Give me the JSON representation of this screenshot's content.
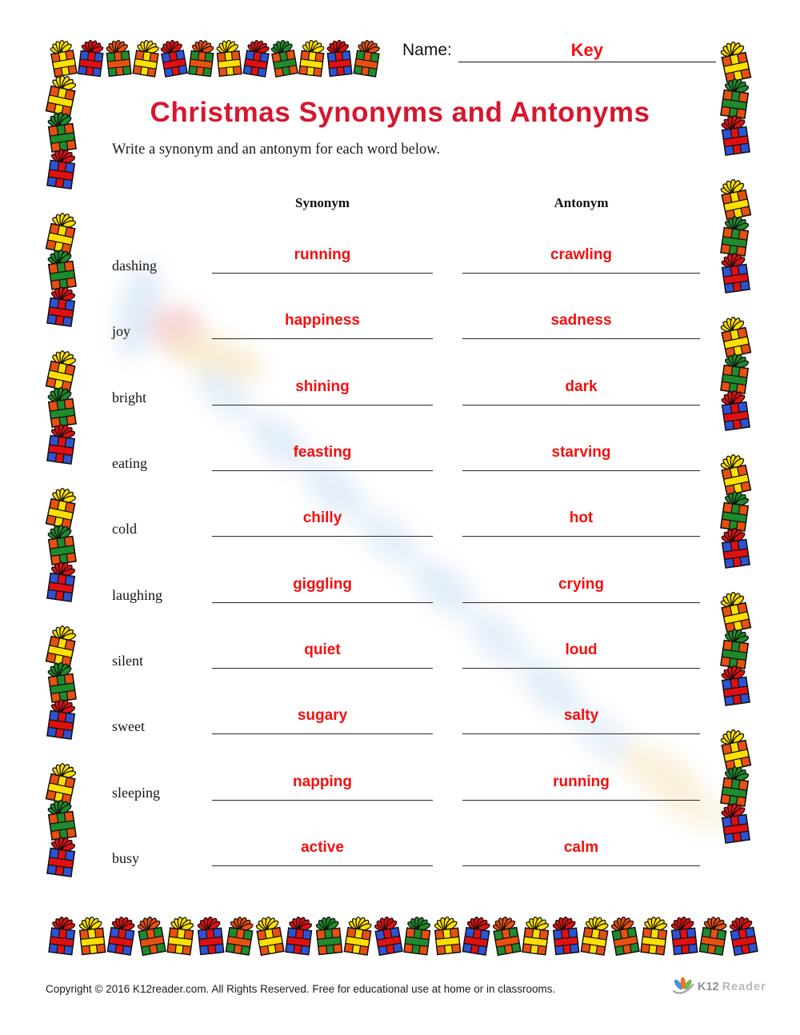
{
  "page": {
    "name_label": "Name:",
    "name_value": "Key",
    "title": "Christmas Synonyms and Antonyms",
    "instructions": "Write a synonym and an antonym for each word below.",
    "column_headers": {
      "synonym": "Synonym",
      "antonym": "Antonym"
    }
  },
  "rows": [
    {
      "word": "dashing",
      "synonym": "running",
      "antonym": "crawling"
    },
    {
      "word": "joy",
      "synonym": "happiness",
      "antonym": "sadness"
    },
    {
      "word": "bright",
      "synonym": "shining",
      "antonym": "dark"
    },
    {
      "word": "eating",
      "synonym": "feasting",
      "antonym": "starving"
    },
    {
      "word": "cold",
      "synonym": "chilly",
      "antonym": "hot"
    },
    {
      "word": "laughing",
      "synonym": "giggling",
      "antonym": "crying"
    },
    {
      "word": "silent",
      "synonym": "quiet",
      "antonym": "loud"
    },
    {
      "word": "sweet",
      "synonym": "sugary",
      "antonym": "salty"
    },
    {
      "word": "sleeping",
      "synonym": "napping",
      "antonym": "running"
    },
    {
      "word": "busy",
      "synonym": "active",
      "antonym": "calm"
    }
  ],
  "footer": {
    "copyright": "Copyright © 2016  K12reader.com. All Rights Reserved. Free for educational use at home or in classrooms.",
    "logo_primary": "K12",
    "logo_secondary": "Reader"
  },
  "colors": {
    "title_red": "#d5172f",
    "answer_red": "#f50f0f",
    "gift_outline": "#111111",
    "logo_leaf_blue": "#4a90d9",
    "logo_leaf_orange": "#e8762c",
    "logo_leaf_green": "#7ab648"
  },
  "border_gifts": {
    "palette": {
      "orange": "#e8500f",
      "blue": "#2f52d4",
      "green": "#1f8b2c",
      "yellow": "#ffdf00",
      "red": "#e01010"
    },
    "combos": {
      "oy": [
        "orange",
        "yellow"
      ],
      "og": [
        "orange",
        "green"
      ],
      "br": [
        "blue",
        "red"
      ],
      "go": [
        "green",
        "orange"
      ]
    },
    "top_pattern": [
      "oy",
      "br",
      "go",
      "oy",
      "br",
      "go",
      "oy",
      "br",
      "og",
      "oy",
      "br",
      "go"
    ],
    "side_pattern": [
      "oy",
      "og",
      "br"
    ],
    "bottom_pattern": [
      "br",
      "oy",
      "br",
      "go",
      "oy",
      "br",
      "go",
      "oy",
      "br",
      "og",
      "oy",
      "br",
      "og",
      "oy",
      "br",
      "go",
      "oy",
      "br",
      "oy",
      "go",
      "oy",
      "br",
      "go",
      "br"
    ]
  }
}
